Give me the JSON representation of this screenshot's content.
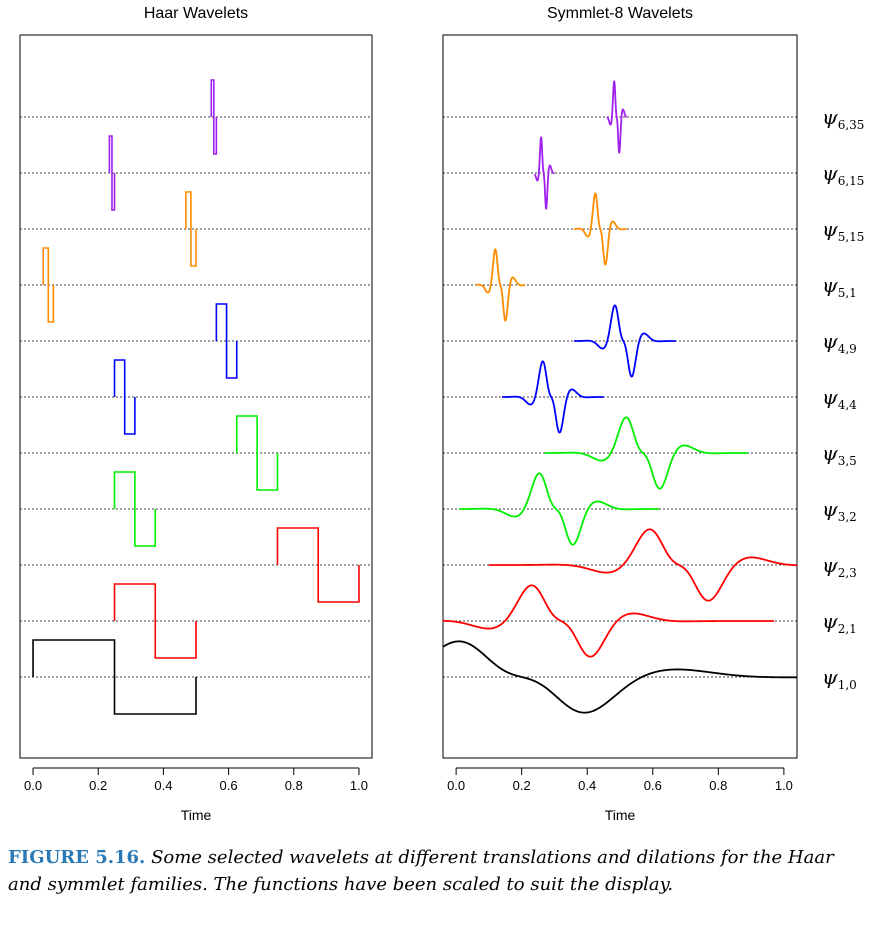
{
  "caption": {
    "lead": "FIGURE 5.16.",
    "body": "Some selected wavelets at different translations and dilations for the Haar and symmlet families. The functions have been scaled to suit the display."
  },
  "colors": {
    "level1": "#000000",
    "level2": "#ff0000",
    "level3": "#00ee00",
    "level4": "#0000ff",
    "level5": "#ff8c00",
    "level6": "#a020f0"
  },
  "chart_data": [
    {
      "type": "line",
      "title": "Haar Wavelets",
      "xlabel": "Time",
      "xlim": [
        -0.04,
        1.04
      ],
      "xticks": [
        "0.0",
        "0.2",
        "0.4",
        "0.6",
        "0.8",
        "1.0"
      ],
      "xtick_values": [
        0,
        0.2,
        0.4,
        0.6,
        0.8,
        1.0
      ],
      "grid_baselines": "dotted",
      "series": [
        {
          "j": 6,
          "k": 35,
          "color": "#a020f0",
          "support": [
            0.5469,
            0.5625
          ]
        },
        {
          "j": 6,
          "k": 15,
          "color": "#a020f0",
          "support": [
            0.2344,
            0.25
          ]
        },
        {
          "j": 5,
          "k": 15,
          "color": "#ff8c00",
          "support": [
            0.4688,
            0.5
          ]
        },
        {
          "j": 5,
          "k": 1,
          "color": "#ff8c00",
          "support": [
            0.03125,
            0.0625
          ]
        },
        {
          "j": 4,
          "k": 9,
          "color": "#0000ff",
          "support": [
            0.5625,
            0.625
          ]
        },
        {
          "j": 4,
          "k": 4,
          "color": "#0000ff",
          "support": [
            0.25,
            0.3125
          ]
        },
        {
          "j": 3,
          "k": 5,
          "color": "#00ee00",
          "support": [
            0.625,
            0.75
          ]
        },
        {
          "j": 3,
          "k": 2,
          "color": "#00ee00",
          "support": [
            0.25,
            0.375
          ]
        },
        {
          "j": 2,
          "k": 3,
          "color": "#ff0000",
          "support": [
            0.75,
            1.0
          ]
        },
        {
          "j": 2,
          "k": 1,
          "color": "#ff0000",
          "support": [
            0.25,
            0.5
          ]
        },
        {
          "j": 1,
          "k": 0,
          "color": "#000000",
          "support": [
            0.0,
            0.5
          ]
        }
      ]
    },
    {
      "type": "line",
      "title": "Symmlet-8 Wavelets",
      "xlabel": "Time",
      "xlim": [
        -0.04,
        1.04
      ],
      "xticks": [
        "0.0",
        "0.2",
        "0.4",
        "0.6",
        "0.8",
        "1.0"
      ],
      "xtick_values": [
        0,
        0.2,
        0.4,
        0.6,
        0.8,
        1.0
      ],
      "grid_baselines": "dotted",
      "series": [
        {
          "j": 6,
          "k": 35,
          "color": "#a020f0",
          "label": "ψ",
          "sub": "6,35",
          "center": 0.49,
          "width": 0.03,
          "range": [
            0.46,
            0.52
          ]
        },
        {
          "j": 6,
          "k": 15,
          "color": "#a020f0",
          "label": "ψ",
          "sub": "6,15",
          "center": 0.267,
          "width": 0.03,
          "range": [
            0.24,
            0.3
          ]
        },
        {
          "j": 5,
          "k": 15,
          "color": "#ff8c00",
          "label": "ψ",
          "sub": "5,15",
          "center": 0.44,
          "width": 0.06,
          "range": [
            0.36,
            0.52
          ]
        },
        {
          "j": 5,
          "k": 1,
          "color": "#ff8c00",
          "label": "ψ",
          "sub": "5,1",
          "center": 0.135,
          "width": 0.06,
          "range": [
            0.06,
            0.21
          ]
        },
        {
          "j": 4,
          "k": 9,
          "color": "#0000ff",
          "label": "ψ",
          "sub": "4,9",
          "center": 0.51,
          "width": 0.1,
          "range": [
            0.36,
            0.67
          ]
        },
        {
          "j": 4,
          "k": 4,
          "color": "#0000ff",
          "label": "ψ",
          "sub": "4,4",
          "center": 0.29,
          "width": 0.1,
          "range": [
            0.14,
            0.45
          ]
        },
        {
          "j": 3,
          "k": 5,
          "color": "#00ee00",
          "label": "ψ",
          "sub": "3,5",
          "center": 0.57,
          "width": 0.2,
          "range": [
            0.27,
            0.89
          ]
        },
        {
          "j": 3,
          "k": 2,
          "color": "#00ee00",
          "label": "ψ",
          "sub": "3,2",
          "center": 0.305,
          "width": 0.2,
          "range": [
            0.01,
            0.62
          ]
        },
        {
          "j": 2,
          "k": 3,
          "color": "#ff0000",
          "label": "ψ",
          "sub": "2,3",
          "center": 0.68,
          "width": 0.35,
          "range": [
            0.1,
            1.04
          ]
        },
        {
          "j": 2,
          "k": 1,
          "color": "#ff0000",
          "label": "ψ",
          "sub": "2,1",
          "center": 0.32,
          "width": 0.35,
          "range": [
            -0.04,
            0.97
          ]
        },
        {
          "j": 1,
          "k": 0,
          "color": "#000000",
          "label": "ψ",
          "sub": "1,0",
          "center": 0.2,
          "width": 0.75,
          "range": [
            -0.04,
            1.04
          ]
        }
      ]
    }
  ]
}
